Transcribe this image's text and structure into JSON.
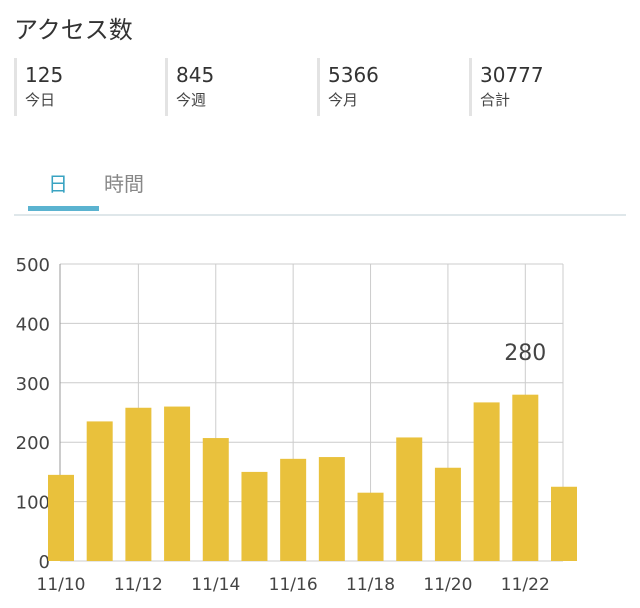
{
  "header": {
    "title": "アクセス数"
  },
  "stats": [
    {
      "value": "125",
      "label": "今日"
    },
    {
      "value": "845",
      "label": "今週"
    },
    {
      "value": "5366",
      "label": "今月"
    },
    {
      "value": "30777",
      "label": "合計"
    }
  ],
  "tabs": [
    {
      "label": "日",
      "active": true
    },
    {
      "label": "時間",
      "active": false
    }
  ],
  "colors": {
    "bar": "#e9c13c",
    "accent": "#39a3c2",
    "grid": "#cccccc"
  },
  "chart_data": {
    "type": "bar",
    "categories": [
      "11/10",
      "11/11",
      "11/12",
      "11/13",
      "11/14",
      "11/15",
      "11/16",
      "11/17",
      "11/18",
      "11/19",
      "11/20",
      "11/21",
      "11/22",
      "11/23"
    ],
    "values": [
      145,
      235,
      258,
      260,
      207,
      150,
      172,
      175,
      115,
      208,
      157,
      267,
      280,
      125
    ],
    "xtick_labels": [
      "11/10",
      "11/12",
      "11/14",
      "11/16",
      "11/18",
      "11/20",
      "11/22"
    ],
    "yticks": [
      0,
      100,
      200,
      300,
      400,
      500
    ],
    "ylim": [
      0,
      500
    ],
    "annotation": {
      "category": "11/22",
      "text": "280"
    },
    "grid": true,
    "legend": "none"
  }
}
